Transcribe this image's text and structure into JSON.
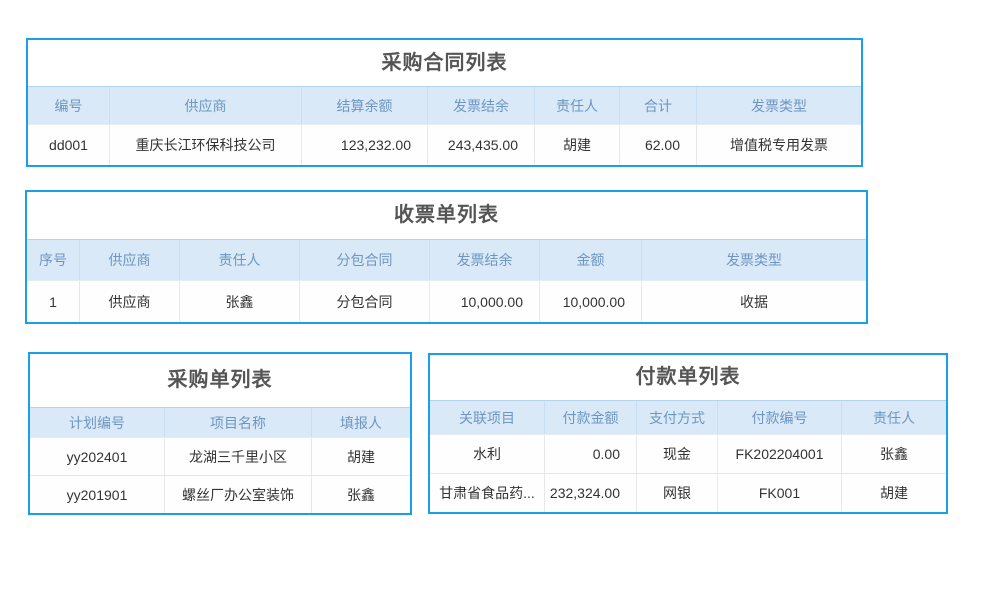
{
  "colors": {
    "table_border": "#1b9fe8",
    "header_bg": "#d9e9f7",
    "header_text": "#6e96c0",
    "title_text": "#555555",
    "body_text": "#333333"
  },
  "tables": {
    "purchase_contract": {
      "title": "采购合同列表",
      "headers": [
        "编号",
        "供应商",
        "结算余额",
        "发票结余",
        "责任人",
        "合计",
        "发票类型"
      ],
      "rows": [
        [
          "dd001",
          "重庆长江环保科技公司",
          "123,232.00",
          "243,435.00",
          "胡建",
          "62.00",
          "增值税专用发票"
        ]
      ]
    },
    "receipt": {
      "title": "收票单列表",
      "headers": [
        "序号",
        "供应商",
        "责任人",
        "分包合同",
        "发票结余",
        "金额",
        "发票类型"
      ],
      "rows": [
        [
          "1",
          "供应商",
          "张鑫",
          "分包合同",
          "10,000.00",
          "10,000.00",
          "收据"
        ]
      ]
    },
    "purchase_order": {
      "title": "采购单列表",
      "headers": [
        "计划编号",
        "项目名称",
        "填报人"
      ],
      "rows": [
        [
          "yy202401",
          "龙湖三千里小区",
          "胡建"
        ],
        [
          "yy201901",
          "螺丝厂办公室装饰",
          "张鑫"
        ]
      ]
    },
    "payment": {
      "title": "付款单列表",
      "headers": [
        "关联项目",
        "付款金额",
        "支付方式",
        "付款编号",
        "责任人"
      ],
      "rows": [
        [
          "水利",
          "0.00",
          "现金",
          "FK202204001",
          "张鑫"
        ],
        [
          "甘肃省食品药...",
          "232,324.00",
          "网银",
          "FK001",
          "胡建"
        ]
      ]
    }
  }
}
